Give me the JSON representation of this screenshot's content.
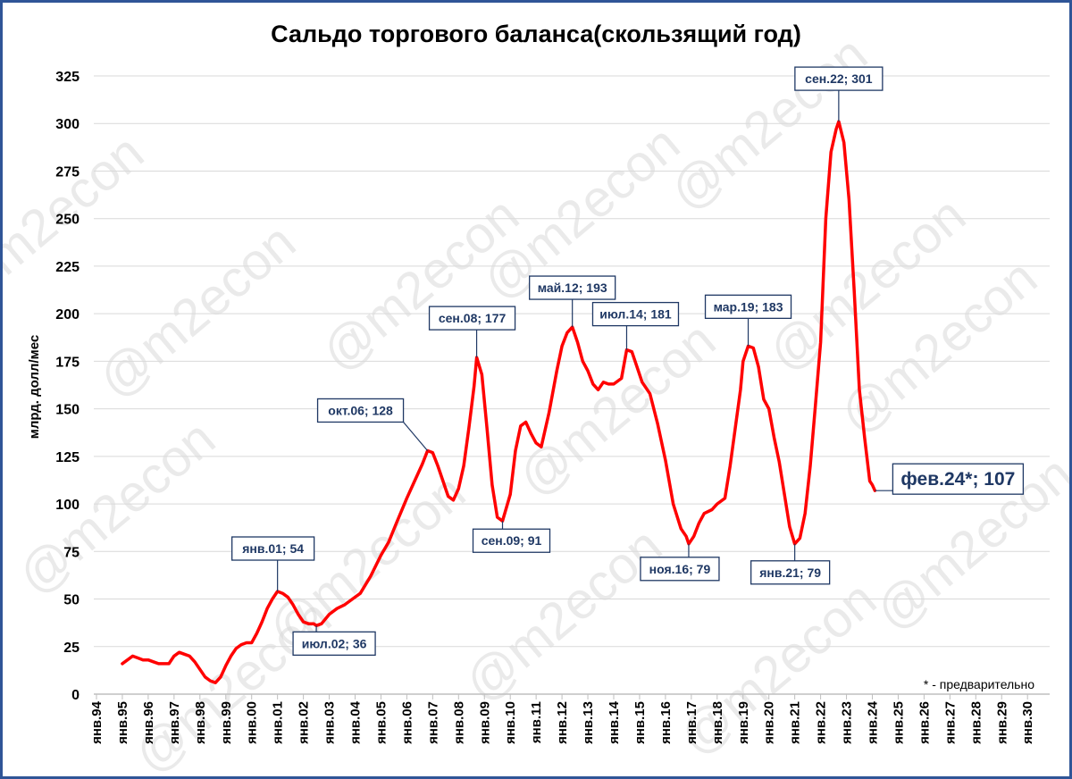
{
  "chart_data": {
    "type": "line",
    "title": "Сальдо торгового баланса(скользящий год)",
    "ylabel": "млрд. долл/мес",
    "ylim": [
      0,
      325
    ],
    "yticks": [
      0,
      25,
      50,
      75,
      100,
      125,
      150,
      175,
      200,
      225,
      250,
      275,
      300,
      325
    ],
    "xlim": [
      1994,
      2030
    ],
    "xticks": [
      "янв.94",
      "янв.95",
      "янв.96",
      "янв.97",
      "янв.98",
      "янв.99",
      "янв.00",
      "янв.01",
      "янв.02",
      "янв.03",
      "янв.04",
      "янв.05",
      "янв.06",
      "янв.07",
      "янв.08",
      "янв.09",
      "янв.10",
      "янв.11",
      "янв.12",
      "янв.13",
      "янв.14",
      "янв.15",
      "янв.16",
      "янв.17",
      "янв.18",
      "янв.19",
      "янв.20",
      "янв.21",
      "янв.22",
      "янв.23",
      "янв.24",
      "янв.25",
      "янв.26",
      "янв.27",
      "янв.28",
      "янв.29",
      "янв.30"
    ],
    "grid": true,
    "line_color": "#ff0000",
    "series": [
      {
        "points": [
          [
            1995.0,
            16
          ],
          [
            1995.2,
            18
          ],
          [
            1995.4,
            20
          ],
          [
            1995.6,
            19
          ],
          [
            1995.8,
            18
          ],
          [
            1996.0,
            18
          ],
          [
            1996.2,
            17
          ],
          [
            1996.4,
            16
          ],
          [
            1996.6,
            16
          ],
          [
            1996.8,
            16
          ],
          [
            1997.0,
            20
          ],
          [
            1997.2,
            22
          ],
          [
            1997.4,
            21
          ],
          [
            1997.6,
            20
          ],
          [
            1997.8,
            17
          ],
          [
            1998.0,
            13
          ],
          [
            1998.2,
            9
          ],
          [
            1998.4,
            7
          ],
          [
            1998.6,
            6
          ],
          [
            1998.8,
            9
          ],
          [
            1999.0,
            15
          ],
          [
            1999.2,
            20
          ],
          [
            1999.4,
            24
          ],
          [
            1999.6,
            26
          ],
          [
            1999.8,
            27
          ],
          [
            2000.0,
            27
          ],
          [
            2000.2,
            32
          ],
          [
            2000.4,
            38
          ],
          [
            2000.6,
            45
          ],
          [
            2000.8,
            50
          ],
          [
            2001.0,
            54
          ],
          [
            2001.2,
            53
          ],
          [
            2001.4,
            51
          ],
          [
            2001.6,
            47
          ],
          [
            2001.8,
            42
          ],
          [
            2002.0,
            38
          ],
          [
            2002.2,
            37
          ],
          [
            2002.4,
            37
          ],
          [
            2002.5,
            36
          ],
          [
            2002.7,
            37
          ],
          [
            2003.0,
            42
          ],
          [
            2003.3,
            45
          ],
          [
            2003.6,
            47
          ],
          [
            2003.9,
            50
          ],
          [
            2004.2,
            53
          ],
          [
            2004.6,
            62
          ],
          [
            2005.0,
            73
          ],
          [
            2005.3,
            80
          ],
          [
            2005.6,
            90
          ],
          [
            2006.0,
            103
          ],
          [
            2006.3,
            112
          ],
          [
            2006.6,
            121
          ],
          [
            2006.8,
            128
          ],
          [
            2007.0,
            127
          ],
          [
            2007.2,
            120
          ],
          [
            2007.4,
            112
          ],
          [
            2007.6,
            104
          ],
          [
            2007.8,
            102
          ],
          [
            2008.0,
            108
          ],
          [
            2008.2,
            120
          ],
          [
            2008.4,
            140
          ],
          [
            2008.6,
            162
          ],
          [
            2008.7,
            177
          ],
          [
            2008.9,
            168
          ],
          [
            2009.1,
            140
          ],
          [
            2009.3,
            110
          ],
          [
            2009.5,
            93
          ],
          [
            2009.7,
            91
          ],
          [
            2010.0,
            105
          ],
          [
            2010.2,
            128
          ],
          [
            2010.4,
            141
          ],
          [
            2010.6,
            143
          ],
          [
            2010.8,
            137
          ],
          [
            2011.0,
            132
          ],
          [
            2011.2,
            130
          ],
          [
            2011.5,
            148
          ],
          [
            2011.8,
            170
          ],
          [
            2012.0,
            183
          ],
          [
            2012.2,
            190
          ],
          [
            2012.4,
            193
          ],
          [
            2012.6,
            185
          ],
          [
            2012.8,
            175
          ],
          [
            2013.0,
            170
          ],
          [
            2013.2,
            163
          ],
          [
            2013.4,
            160
          ],
          [
            2013.6,
            164
          ],
          [
            2013.8,
            163
          ],
          [
            2014.0,
            163
          ],
          [
            2014.3,
            166
          ],
          [
            2014.5,
            181
          ],
          [
            2014.7,
            180
          ],
          [
            2014.9,
            172
          ],
          [
            2015.1,
            164
          ],
          [
            2015.4,
            158
          ],
          [
            2015.7,
            142
          ],
          [
            2016.0,
            123
          ],
          [
            2016.3,
            100
          ],
          [
            2016.6,
            87
          ],
          [
            2016.8,
            83
          ],
          [
            2016.9,
            79
          ],
          [
            2017.1,
            83
          ],
          [
            2017.3,
            90
          ],
          [
            2017.5,
            95
          ],
          [
            2017.8,
            97
          ],
          [
            2018.0,
            100
          ],
          [
            2018.3,
            103
          ],
          [
            2018.5,
            120
          ],
          [
            2018.7,
            140
          ],
          [
            2018.9,
            160
          ],
          [
            2019.0,
            175
          ],
          [
            2019.2,
            183
          ],
          [
            2019.4,
            182
          ],
          [
            2019.6,
            172
          ],
          [
            2019.8,
            155
          ],
          [
            2020.0,
            150
          ],
          [
            2020.2,
            135
          ],
          [
            2020.4,
            122
          ],
          [
            2020.6,
            105
          ],
          [
            2020.8,
            88
          ],
          [
            2021.0,
            79
          ],
          [
            2021.2,
            82
          ],
          [
            2021.4,
            95
          ],
          [
            2021.6,
            120
          ],
          [
            2021.8,
            152
          ],
          [
            2022.0,
            185
          ],
          [
            2022.2,
            250
          ],
          [
            2022.4,
            285
          ],
          [
            2022.6,
            297
          ],
          [
            2022.7,
            301
          ],
          [
            2022.9,
            290
          ],
          [
            2023.1,
            260
          ],
          [
            2023.3,
            212
          ],
          [
            2023.5,
            160
          ],
          [
            2023.7,
            135
          ],
          [
            2023.9,
            112
          ],
          [
            2024.0,
            110
          ],
          [
            2024.1,
            107
          ]
        ]
      }
    ],
    "annotations": [
      {
        "label": "янв.01; 54",
        "x": 2001.0,
        "y": 54
      },
      {
        "label": "июл.02; 36",
        "x": 2002.5,
        "y": 36
      },
      {
        "label": "окт.06; 128",
        "x": 2006.8,
        "y": 128
      },
      {
        "label": "сен.08; 177",
        "x": 2008.7,
        "y": 177
      },
      {
        "label": "сен.09; 91",
        "x": 2009.7,
        "y": 91
      },
      {
        "label": "май.12; 193",
        "x": 2012.4,
        "y": 193
      },
      {
        "label": "июл.14; 181",
        "x": 2014.5,
        "y": 181
      },
      {
        "label": "ноя.16; 79",
        "x": 2016.9,
        "y": 79
      },
      {
        "label": "мар.19; 183",
        "x": 2019.2,
        "y": 183
      },
      {
        "label": "янв.21; 79",
        "x": 2021.0,
        "y": 79
      },
      {
        "label": "сен.22; 301",
        "x": 2022.7,
        "y": 301
      },
      {
        "label": "фев.24*; 107",
        "x": 2024.1,
        "y": 107
      }
    ],
    "footnote": "* - предварительно",
    "watermark": "@m2econ"
  }
}
